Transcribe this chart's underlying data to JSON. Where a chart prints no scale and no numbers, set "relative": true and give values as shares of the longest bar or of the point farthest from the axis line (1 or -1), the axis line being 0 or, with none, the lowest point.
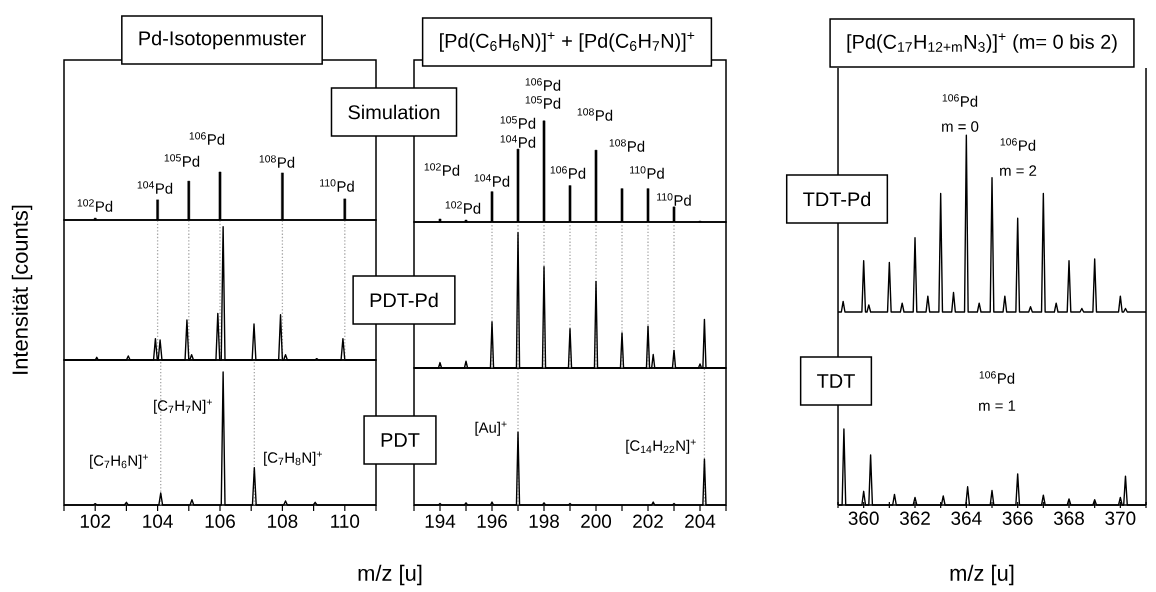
{
  "chart_data": [
    {
      "type": "bar",
      "title": "Pd-Isotopenmuster",
      "subtitle": "Simulation",
      "relative": true,
      "color": "#000000",
      "xlim": [
        101,
        111
      ],
      "tick_labels": false,
      "x": [
        102,
        104,
        105,
        106,
        108,
        110
      ],
      "values": [
        0.04,
        0.42,
        0.81,
        1,
        0.98,
        0.44
      ],
      "annotations": [
        "$^{102}$Pd",
        "$^{104}$Pd",
        "$^{105}$Pd",
        "$^{106}$Pd",
        "$^{108}$Pd",
        "$^{110}$Pd"
      ]
    },
    {
      "type": "line",
      "title": "PDT-Pd",
      "ylabel": "Intensität [counts]",
      "relative": true,
      "color": "#000000",
      "xlim": [
        101,
        111
      ],
      "tick_labels": false,
      "x": [
        101,
        102.0,
        102.05,
        102.1,
        103.0,
        103.06,
        103.12,
        103.87,
        103.93,
        103.99,
        104.02,
        104.08,
        104.14,
        104.88,
        104.94,
        105.0,
        105.03,
        105.09,
        105.15,
        105.87,
        105.93,
        105.99,
        106.04,
        106.1,
        106.16,
        107.03,
        107.09,
        107.15,
        107.88,
        107.94,
        108.0,
        108.04,
        108.1,
        108.16,
        109.04,
        109.1,
        109.16,
        109.88,
        109.94,
        110.0,
        111
      ],
      "values": [
        0,
        0,
        0.02,
        0,
        0,
        0.03,
        0,
        0,
        0.16,
        0,
        0,
        0.15,
        0,
        0,
        0.3,
        0,
        0,
        0.04,
        0,
        0,
        0.35,
        0,
        0,
        1,
        0,
        0,
        0.27,
        0,
        0,
        0.34,
        0,
        0,
        0.04,
        0,
        0,
        0.01,
        0,
        0,
        0.16,
        0,
        0
      ],
      "ref_lines": [
        {
          "axis": "x",
          "value": 104,
          "line_style": "dotted",
          "color": "#a6a6a6"
        },
        {
          "axis": "x",
          "value": 105,
          "line_style": "dotted",
          "color": "#a6a6a6"
        },
        {
          "axis": "x",
          "value": 106,
          "line_style": "dotted",
          "color": "#a6a6a6"
        },
        {
          "axis": "x",
          "value": 108,
          "line_style": "dotted",
          "color": "#a6a6a6"
        },
        {
          "axis": "x",
          "value": 110,
          "line_style": "dotted",
          "color": "#a6a6a6"
        }
      ]
    },
    {
      "type": "line",
      "title": "PDT",
      "xlabel": "m/z [u]",
      "relative": true,
      "color": "#000000",
      "xlim": [
        101,
        111
      ],
      "xticks": [
        {
          "value": 101,
          "label": null
        },
        102,
        {
          "value": 103,
          "label": null
        },
        104,
        {
          "value": 105,
          "label": null
        },
        106,
        {
          "value": 107,
          "label": null
        },
        108,
        {
          "value": 109,
          "label": null
        },
        110,
        {
          "value": 111,
          "label": null
        }
      ],
      "x": [
        101,
        101.94,
        102,
        102.06,
        102.94,
        103,
        103.06,
        104.04,
        104.1,
        104.16,
        105.04,
        105.1,
        105.16,
        106.04,
        106.1,
        106.16,
        107.04,
        107.1,
        107.16,
        108.04,
        108.1,
        108.16,
        108.99,
        109.05,
        109.11,
        111
      ],
      "values": [
        0,
        0,
        0.01,
        0,
        0,
        0.02,
        0,
        0,
        0.09,
        0,
        0,
        0.04,
        0,
        0,
        1,
        0,
        0,
        0.28,
        0,
        0,
        0.03,
        0,
        0,
        0.02,
        0,
        0
      ],
      "annotations": [
        "[C$_{7}$H$_{6}$N]$^{+}$",
        "[C$_{7}$H$_{7}$N]$^{+}$",
        "[C$_{7}$H$_{8}$N]$^{+}$"
      ],
      "ref_lines": [
        {
          "axis": "x",
          "value": 104.1,
          "line_style": "dotted",
          "color": "#a6a6a6"
        },
        {
          "axis": "x",
          "value": 107.1,
          "line_style": "dotted",
          "color": "#a6a6a6"
        }
      ]
    },
    {
      "type": "bar",
      "title": "[Pd(C$_{6}$H$_{6}$N)]$^{+}$ + [Pd(C$_{6}$H$_{7}$N)]$^{+}$",
      "relative": true,
      "color": "#000000",
      "xlim": [
        193,
        205
      ],
      "tick_labels": false,
      "x": [
        194,
        195,
        196,
        197,
        198,
        199,
        200,
        201,
        202,
        203,
        204
      ],
      "values": [
        0.03,
        0.02,
        0.3,
        0.72,
        1,
        0.36,
        0.71,
        0.33,
        0.33,
        0.15,
        0.01
      ],
      "annotations": [
        "$^{102}$Pd",
        "$^{102}$Pd",
        "$^{104}$Pd",
        "$^{104}$Pd",
        "$^{105}$Pd",
        "$^{105}$Pd",
        "$^{106}$Pd",
        "$^{106}$Pd",
        "$^{108}$Pd",
        "$^{108}$Pd",
        "$^{110}$Pd",
        "$^{110}$Pd"
      ]
    },
    {
      "type": "line",
      "relative": true,
      "color": "#000000",
      "xlim": [
        193,
        205
      ],
      "tick_labels": false,
      "x": [
        193,
        193.94,
        194,
        194.06,
        194.94,
        195,
        195.06,
        195.94,
        196,
        196.06,
        196.94,
        197,
        197.06,
        197.94,
        198,
        198.06,
        198.94,
        199,
        199.06,
        199.94,
        200,
        200.06,
        200.94,
        201,
        201.06,
        201.94,
        202,
        202.06,
        202.14,
        202.2,
        202.26,
        202.94,
        203,
        203.06,
        203.94,
        204,
        204.06,
        204.11,
        204.17,
        204.23,
        205
      ],
      "values": [
        0,
        0,
        0.04,
        0,
        0,
        0.05,
        0,
        0,
        0.34,
        0,
        0,
        1,
        0,
        0,
        0.75,
        0,
        0,
        0.29,
        0,
        0,
        0.64,
        0,
        0,
        0.26,
        0,
        0,
        0.31,
        0,
        0,
        0.1,
        0,
        0,
        0.13,
        0,
        0,
        0.03,
        0,
        0,
        0.36,
        0,
        0
      ],
      "ref_lines": [
        {
          "axis": "x",
          "value": 196,
          "line_style": "dotted",
          "color": "#a6a6a6"
        },
        {
          "axis": "x",
          "value": 197,
          "line_style": "dotted",
          "color": "#a6a6a6"
        },
        {
          "axis": "x",
          "value": 198,
          "line_style": "dotted",
          "color": "#a6a6a6"
        },
        {
          "axis": "x",
          "value": 199,
          "line_style": "dotted",
          "color": "#a6a6a6"
        },
        {
          "axis": "x",
          "value": 200,
          "line_style": "dotted",
          "color": "#a6a6a6"
        },
        {
          "axis": "x",
          "value": 201,
          "line_style": "dotted",
          "color": "#a6a6a6"
        },
        {
          "axis": "x",
          "value": 202,
          "line_style": "dotted",
          "color": "#a6a6a6"
        },
        {
          "axis": "x",
          "value": 203,
          "line_style": "dotted",
          "color": "#a6a6a6"
        }
      ]
    },
    {
      "type": "line",
      "relative": true,
      "color": "#000000",
      "xlim": [
        193,
        205
      ],
      "xticks": [
        {
          "value": 193,
          "label": null
        },
        194,
        {
          "value": 195,
          "label": null
        },
        196,
        {
          "value": 197,
          "label": null
        },
        198,
        {
          "value": 199,
          "label": null
        },
        200,
        {
          "value": 201,
          "label": null
        },
        202,
        {
          "value": 203,
          "label": null
        },
        204,
        {
          "value": 205,
          "label": null
        }
      ],
      "x": [
        193,
        193.94,
        194,
        194.06,
        194.94,
        195,
        195.06,
        195.94,
        196,
        196.06,
        196.94,
        197,
        197.06,
        197.94,
        198,
        198.06,
        198.94,
        199,
        199.06,
        202.14,
        202.2,
        202.26,
        202.94,
        203,
        203.06,
        204.11,
        204.17,
        204.23,
        205
      ],
      "values": [
        0,
        0,
        0.02,
        0,
        0,
        0.03,
        0,
        0,
        0.04,
        0,
        0,
        1,
        0,
        0,
        0.03,
        0,
        0,
        0.02,
        0,
        0,
        0.04,
        0,
        0,
        0.02,
        0,
        0,
        0.63,
        0,
        0
      ],
      "annotations": [
        "[Au]$^{+}$",
        "[C$_{14}$H$_{22}$N]$^{+}$"
      ],
      "ref_lines": [
        {
          "axis": "x",
          "value": 197,
          "line_style": "dotted",
          "color": "#a6a6a6"
        },
        {
          "axis": "x",
          "value": 204.17,
          "line_style": "dotted",
          "color": "#a6a6a6"
        }
      ]
    },
    {
      "type": "line",
      "title": "[Pd(C$_{17}$H$_{12+m}$N$_{3}$)]$^{+}$ (m= 0 bis 2)",
      "subtitle": "TDT-Pd",
      "relative": true,
      "color": "#000000",
      "xlim": [
        359,
        371
      ],
      "tick_labels": false,
      "x": [
        359,
        359.13,
        359.2,
        359.27,
        359.93,
        360,
        360.07,
        360.13,
        360.2,
        360.27,
        360.93,
        361,
        361.07,
        361.43,
        361.5,
        361.57,
        361.93,
        362,
        362.07,
        362.43,
        362.5,
        362.57,
        362.93,
        363,
        363.07,
        363.43,
        363.5,
        363.57,
        363.93,
        364,
        364.07,
        364.43,
        364.5,
        364.57,
        364.93,
        365,
        365.07,
        365.43,
        365.5,
        365.57,
        365.93,
        366,
        366.07,
        366.43,
        366.5,
        366.57,
        366.93,
        367,
        367.07,
        367.43,
        367.5,
        367.57,
        367.93,
        368,
        368.07,
        368.43,
        368.5,
        368.57,
        368.93,
        369,
        369.07,
        369.93,
        370,
        370.07,
        370.13,
        370.2,
        370.27,
        371
      ],
      "values": [
        0,
        0,
        0.06,
        0,
        0,
        0.29,
        0,
        0,
        0.04,
        0,
        0,
        0.28,
        0,
        0,
        0.05,
        0,
        0,
        0.42,
        0,
        0,
        0.09,
        0,
        0,
        0.67,
        0,
        0,
        0.11,
        0,
        0,
        1,
        0,
        0,
        0.05,
        0,
        0,
        0.76,
        0,
        0,
        0.09,
        0,
        0,
        0.53,
        0,
        0,
        0.03,
        0,
        0,
        0.67,
        0,
        0,
        0.05,
        0,
        0,
        0.29,
        0,
        0,
        0.02,
        0,
        0,
        0.3,
        0,
        0,
        0.09,
        0,
        0,
        0.02,
        0,
        0
      ],
      "annotations": [
        "$^{106}$Pd",
        "m = 0",
        "$^{106}$Pd",
        "m = 2"
      ]
    },
    {
      "type": "line",
      "title": "TDT",
      "xlabel": "m/z [u]",
      "relative": true,
      "color": "#000000",
      "xlim": [
        359,
        371
      ],
      "xticks": [
        {
          "value": 359,
          "label": null
        },
        360,
        {
          "value": 361,
          "label": null
        },
        362,
        {
          "value": 363,
          "label": null
        },
        364,
        {
          "value": 365,
          "label": null
        },
        366,
        {
          "value": 367,
          "label": null
        },
        368,
        {
          "value": 369,
          "label": null
        },
        370,
        {
          "value": 371,
          "label": null
        }
      ],
      "x": [
        359,
        359.16,
        359.23,
        359.3,
        359.93,
        360,
        360.07,
        360.2,
        360.27,
        360.34,
        361.13,
        361.2,
        361.27,
        361.93,
        362,
        362.07,
        363.03,
        363.1,
        363.17,
        363.98,
        364.05,
        364.12,
        364.93,
        365,
        365.07,
        365.93,
        366,
        366.07,
        366.93,
        367,
        367.07,
        367.93,
        368,
        368.07,
        368.93,
        369,
        369.07,
        369.93,
        370,
        370.07,
        370.13,
        370.2,
        370.27,
        371
      ],
      "values": [
        0,
        0,
        1,
        0,
        0,
        0.18,
        0,
        0,
        0.66,
        0,
        0,
        0.14,
        0,
        0,
        0.1,
        0,
        0,
        0.12,
        0,
        0,
        0.24,
        0,
        0,
        0.19,
        0,
        0,
        0.41,
        0,
        0,
        0.13,
        0,
        0,
        0.08,
        0,
        0,
        0.07,
        0,
        0,
        0.1,
        0,
        0,
        0.38,
        0,
        0
      ],
      "annotations": [
        "$^{106}$Pd",
        "m = 1"
      ]
    }
  ]
}
